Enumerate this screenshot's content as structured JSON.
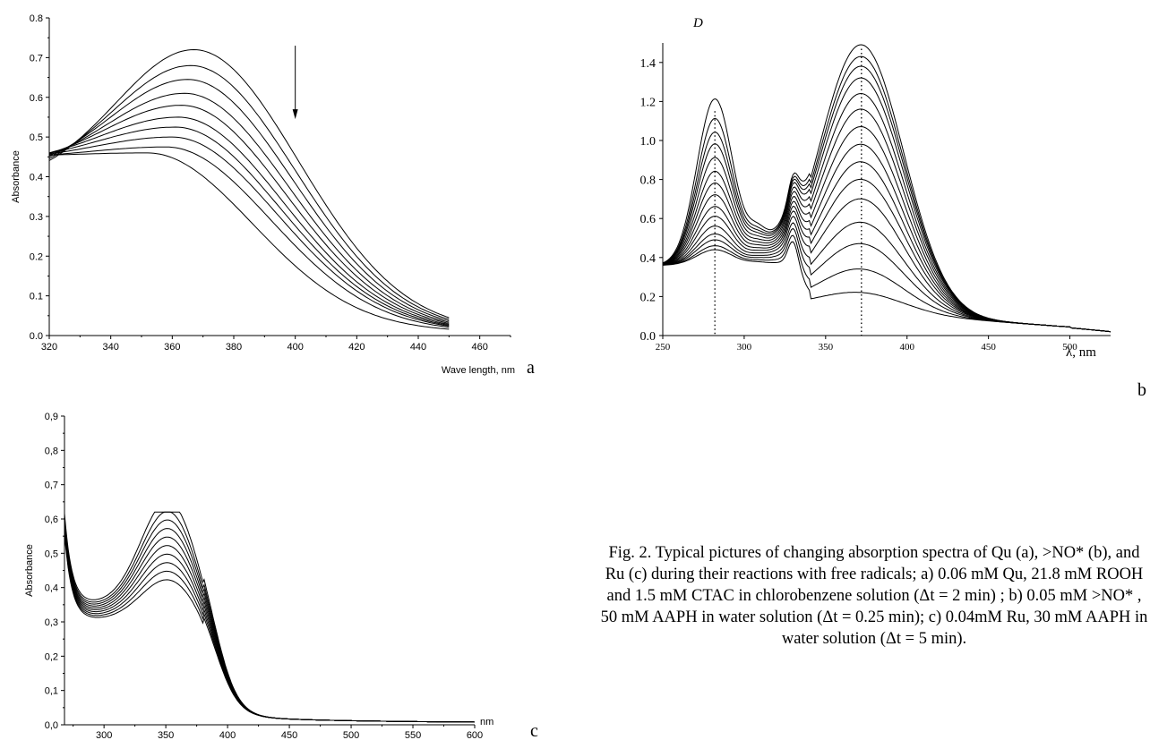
{
  "caption": "Fig. 2. Typical pictures of changing absorption spectra of Qu (a), >NO* (b), and Ru (c) during their reactions with free radicals; a) 0.06 mM Qu, 21.8 mM ROOH and 1.5 mM CTAC in chlorobenzene solution (Δt = 2 min) ; b) 0.05 mM >NO* , 50 mM AAPH in water solution (Δt = 0.25 min); c) 0.04mM Ru, 30 mM AAPH in water solution (Δt = 5 min).",
  "chart_data": [
    {
      "panel": "a",
      "type": "line",
      "xlabel": "Wave length, nm",
      "ylabel": "Absorbance",
      "xlim": [
        320,
        470
      ],
      "ylim": [
        0,
        0.8
      ],
      "xticks": [
        "320",
        "340",
        "360",
        "380",
        "400",
        "420",
        "440",
        "460"
      ],
      "yticks": [
        "0.0",
        "0.1",
        "0.2",
        "0.3",
        "0.4",
        "0.5",
        "0.6",
        "0.7",
        "0.8"
      ],
      "x_range": [
        320,
        450
      ],
      "annotation": "downward arrow at 400 nm indicating decreasing absorbance with time",
      "series": [
        {
          "peak_x": 367,
          "peak_y": 0.72,
          "start_y": 0.38,
          "end_y": 0.009
        },
        {
          "peak_x": 366,
          "peak_y": 0.68,
          "start_y": 0.39,
          "end_y": 0.009
        },
        {
          "peak_x": 365,
          "peak_y": 0.645,
          "start_y": 0.4,
          "end_y": 0.009
        },
        {
          "peak_x": 364,
          "peak_y": 0.61,
          "start_y": 0.41,
          "end_y": 0.009
        },
        {
          "peak_x": 363,
          "peak_y": 0.58,
          "start_y": 0.42,
          "end_y": 0.009
        },
        {
          "peak_x": 362,
          "peak_y": 0.55,
          "start_y": 0.43,
          "end_y": 0.009
        },
        {
          "peak_x": 361,
          "peak_y": 0.525,
          "start_y": 0.435,
          "end_y": 0.009
        },
        {
          "peak_x": 360,
          "peak_y": 0.5,
          "start_y": 0.44,
          "end_y": 0.009
        },
        {
          "peak_x": 358,
          "peak_y": 0.475,
          "start_y": 0.445,
          "end_y": 0.009
        },
        {
          "peak_x": 352,
          "peak_y": 0.46,
          "start_y": 0.45,
          "end_y": 0.009
        }
      ]
    },
    {
      "panel": "b",
      "type": "line",
      "xlabel": "λ, nm",
      "ylabel": "D",
      "xlim": [
        250,
        525
      ],
      "ylim": [
        0,
        1.5
      ],
      "xticks": [
        "250",
        "300",
        "350",
        "400",
        "450",
        "500"
      ],
      "yticks": [
        "0.0",
        "0.2",
        "0.4",
        "0.6",
        "0.8",
        "1.0",
        "1.2",
        "1.4"
      ],
      "x_range": [
        250,
        525
      ],
      "peak_markers_x": [
        282,
        372
      ],
      "series": [
        {
          "peak1_y": 1.15,
          "peak2_y": 1.47
        },
        {
          "peak1_y": 1.05,
          "peak2_y": 1.41
        },
        {
          "peak1_y": 0.98,
          "peak2_y": 1.36
        },
        {
          "peak1_y": 0.92,
          "peak2_y": 1.3
        },
        {
          "peak1_y": 0.85,
          "peak2_y": 1.22
        },
        {
          "peak1_y": 0.78,
          "peak2_y": 1.14
        },
        {
          "peak1_y": 0.72,
          "peak2_y": 1.05
        },
        {
          "peak1_y": 0.66,
          "peak2_y": 0.96
        },
        {
          "peak1_y": 0.6,
          "peak2_y": 0.87
        },
        {
          "peak1_y": 0.55,
          "peak2_y": 0.78
        },
        {
          "peak1_y": 0.5,
          "peak2_y": 0.68
        },
        {
          "peak1_y": 0.46,
          "peak2_y": 0.56
        },
        {
          "peak1_y": 0.43,
          "peak2_y": 0.45
        },
        {
          "peak1_y": 0.4,
          "peak2_y": 0.32
        },
        {
          "peak1_y": 0.38,
          "peak2_y": 0.2
        }
      ]
    },
    {
      "panel": "c",
      "type": "line",
      "xlabel": "nm",
      "ylabel": "Absorbance",
      "xlim": [
        268,
        600
      ],
      "ylim": [
        0,
        0.9
      ],
      "xticks": [
        "300",
        "350",
        "400",
        "450",
        "500",
        "550",
        "600"
      ],
      "yticks": [
        "0,0",
        "0,1",
        "0,2",
        "0,3",
        "0,4",
        "0,5",
        "0,6",
        "0,7",
        "0,8",
        "0,9"
      ],
      "x_range": [
        268,
        600
      ],
      "crossing_points": [
        {
          "x": 310,
          "y": 0.37
        },
        {
          "x": 400,
          "y": 0.12
        }
      ],
      "series": [
        {
          "peak_y": 0.605,
          "start_y": 0.61
        },
        {
          "peak_y": 0.58,
          "start_y": 0.6
        },
        {
          "peak_y": 0.56,
          "start_y": 0.59
        },
        {
          "peak_y": 0.54,
          "start_y": 0.58
        },
        {
          "peak_y": 0.52,
          "start_y": 0.575
        },
        {
          "peak_y": 0.5,
          "start_y": 0.57
        },
        {
          "peak_y": 0.48,
          "start_y": 0.565
        },
        {
          "peak_y": 0.46,
          "start_y": 0.56
        },
        {
          "peak_y": 0.44,
          "start_y": 0.555
        },
        {
          "peak_y": 0.42,
          "start_y": 0.55
        }
      ]
    }
  ],
  "panels": {
    "a": {
      "letter": "a"
    },
    "b": {
      "letter": "b"
    },
    "c": {
      "letter": "c"
    }
  }
}
